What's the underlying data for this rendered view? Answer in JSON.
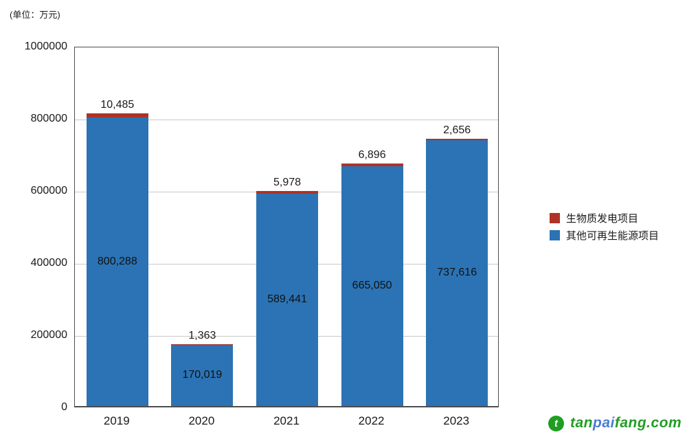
{
  "unit_label": "(单位：万元)",
  "chart_data": {
    "type": "bar",
    "stacked": true,
    "title": "",
    "xlabel": "",
    "ylabel": "",
    "categories": [
      "2019",
      "2020",
      "2021",
      "2022",
      "2023"
    ],
    "series": [
      {
        "name": "生物质发电项目",
        "color": "#b03226",
        "values": [
          10485,
          1363,
          5978,
          6896,
          2656
        ]
      },
      {
        "name": "其他可再生能源项目",
        "color": "#2b73b4",
        "values": [
          800288,
          170019,
          589441,
          665050,
          737616
        ]
      }
    ],
    "ylim": [
      0,
      1000000
    ],
    "yticks": [
      0,
      200000,
      400000,
      600000,
      800000,
      1000000
    ],
    "grid": "horizontal",
    "gridline_color": "#c9c9c9",
    "legend_position": "right-middle",
    "bar_value_labels": {
      "above_bar": "biomass values",
      "inside_bar": "renewable values"
    }
  },
  "watermark": {
    "icon": "tanpaifang-logo",
    "parts": [
      {
        "text": "tan",
        "color": "#1f9e22"
      },
      {
        "text": "pai",
        "color": "#4a7bd4"
      },
      {
        "text": "fang.com",
        "color": "#1f9e22"
      }
    ]
  }
}
